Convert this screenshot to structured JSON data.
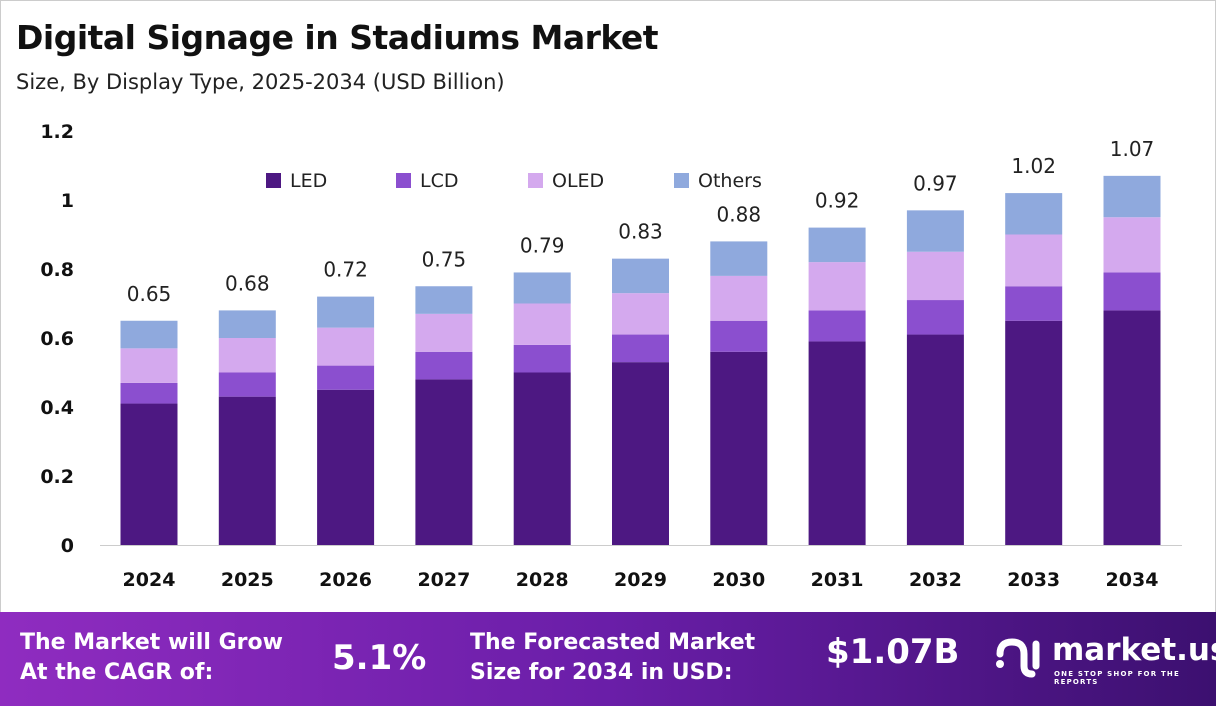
{
  "chart_data": {
    "type": "bar",
    "stacked": true,
    "title": "Digital Signage in Stadiums Market",
    "subtitle": "Size, By Display Type, 2025-2034 (USD Billion)",
    "categories": [
      "2024",
      "2025",
      "2026",
      "2027",
      "2028",
      "2029",
      "2030",
      "2031",
      "2032",
      "2033",
      "2034"
    ],
    "series": [
      {
        "name": "LED",
        "color": "#4d1882",
        "values": [
          0.41,
          0.43,
          0.45,
          0.48,
          0.5,
          0.53,
          0.56,
          0.59,
          0.61,
          0.65,
          0.68
        ]
      },
      {
        "name": "LCD",
        "color": "#8b4fcf",
        "values": [
          0.06,
          0.07,
          0.07,
          0.08,
          0.08,
          0.08,
          0.09,
          0.09,
          0.1,
          0.1,
          0.11
        ]
      },
      {
        "name": "OLED",
        "color": "#d4a9ee",
        "values": [
          0.1,
          0.1,
          0.11,
          0.11,
          0.12,
          0.12,
          0.13,
          0.14,
          0.14,
          0.15,
          0.16
        ]
      },
      {
        "name": "Others",
        "color": "#8fa9dd",
        "values": [
          0.08,
          0.08,
          0.09,
          0.08,
          0.09,
          0.1,
          0.1,
          0.1,
          0.12,
          0.12,
          0.12
        ]
      }
    ],
    "totals": [
      "0.65",
      "0.68",
      "0.72",
      "0.75",
      "0.79",
      "0.83",
      "0.88",
      "0.92",
      "0.97",
      "1.02",
      "1.07"
    ],
    "ylim": [
      0,
      1.2
    ],
    "yticks": [
      "0",
      "0.2",
      "0.4",
      "0.6",
      "0.8",
      "1",
      "1.2"
    ],
    "xlabel": "",
    "ylabel": "",
    "grid": false,
    "legend": "top"
  },
  "banner": {
    "cagr_label": "The Market will Grow At the CAGR of:",
    "cagr_value": "5.1%",
    "forecast_label": "The Forecasted Market Size for 2034 in USD:",
    "forecast_value": "$1.07B",
    "logo_text": "market.us",
    "logo_tagline": "ONE STOP SHOP FOR THE REPORTS"
  }
}
